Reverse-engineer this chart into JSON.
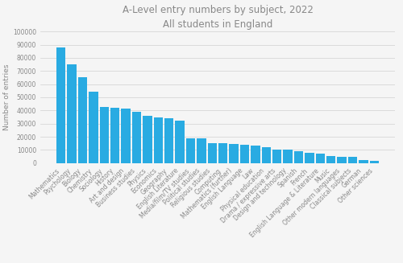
{
  "title": "A-Level entry numbers by subject, 2022",
  "subtitle": "All students in England",
  "ylabel": "Number of entries",
  "bar_color": "#29ABE2",
  "background_color": "#f5f5f5",
  "categories": [
    "Mathematics",
    "Psychology",
    "Biology",
    "Chemistry",
    "Sociology",
    "History",
    "Art and design",
    "Business studies",
    "Physics",
    "Economics",
    "Geography",
    "English Literature",
    "Media/film/TV studies",
    "Political studies",
    "Religious studies",
    "Computing",
    "Mathematics (further)",
    "English Language",
    "Law",
    "Physical education",
    "Drama / expressive arts",
    "Design and technology",
    "Spanish",
    "French",
    "English Language & Literature",
    "Music",
    "Other modern languages",
    "Classical subjects",
    "German",
    "Other sciences"
  ],
  "values": [
    88000,
    75000,
    65000,
    54000,
    42500,
    42000,
    41500,
    39000,
    36000,
    35000,
    34000,
    32500,
    19000,
    19000,
    15000,
    15000,
    14500,
    14000,
    13500,
    12000,
    10500,
    10000,
    9000,
    8000,
    7000,
    5500,
    5000,
    4500,
    2500,
    1500
  ],
  "ylim": [
    0,
    100000
  ],
  "yticks": [
    0,
    10000,
    20000,
    30000,
    40000,
    50000,
    60000,
    70000,
    80000,
    90000,
    100000
  ],
  "grid_color": "#d0d0d0",
  "title_fontsize": 8.5,
  "subtitle_fontsize": 7.5,
  "ylabel_fontsize": 6.5,
  "tick_fontsize": 5.5,
  "label_color": "#888888"
}
